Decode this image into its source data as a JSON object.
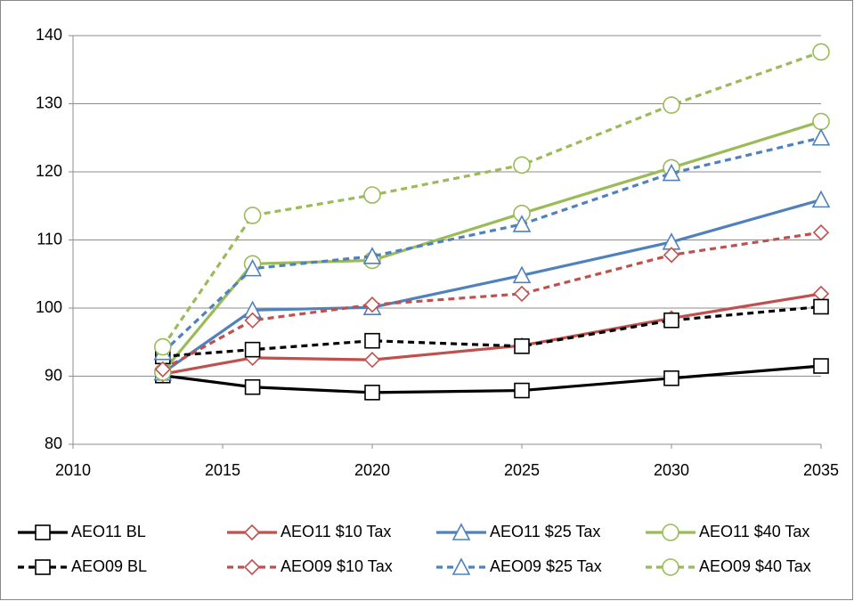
{
  "chart_data": {
    "type": "line",
    "x": [
      2013,
      2016,
      2020,
      2025,
      2030,
      2035
    ],
    "xlim": [
      2010,
      2035
    ],
    "xticks": [
      2010,
      2015,
      2020,
      2025,
      2030,
      2035
    ],
    "ylim": [
      80,
      140
    ],
    "yticks": [
      80,
      90,
      100,
      110,
      120,
      130,
      140
    ],
    "grid": true,
    "legend": "bottom",
    "series": [
      {
        "name": "AEO11 BL",
        "color": "#000000",
        "line_style": "solid",
        "marker": "square",
        "values": [
          90.1,
          88.4,
          87.6,
          87.9,
          89.7,
          91.5
        ]
      },
      {
        "name": "AEO11 $10 Tax",
        "color": "#c0504d",
        "line_style": "solid",
        "marker": "diamond",
        "values": [
          90.3,
          92.7,
          92.4,
          94.5,
          98.5,
          102.1
        ]
      },
      {
        "name": "AEO11 $25 Tax",
        "color": "#4f81bd",
        "line_style": "solid",
        "marker": "triangle",
        "values": [
          90.5,
          99.7,
          100.1,
          104.8,
          109.7,
          115.9
        ]
      },
      {
        "name": "AEO11 $40 Tax",
        "color": "#9bbb59",
        "line_style": "solid",
        "marker": "circle",
        "values": [
          90.6,
          106.5,
          107.0,
          113.9,
          120.6,
          127.4
        ]
      },
      {
        "name": "AEO09 BL",
        "color": "#000000",
        "line_style": "dashed",
        "marker": "square",
        "values": [
          92.9,
          93.9,
          95.2,
          94.4,
          98.2,
          100.2
        ]
      },
      {
        "name": "AEO09 $10 Tax",
        "color": "#c0504d",
        "line_style": "dashed",
        "marker": "diamond",
        "values": [
          91.0,
          98.2,
          100.5,
          102.1,
          107.8,
          111.1
        ]
      },
      {
        "name": "AEO09 $25 Tax",
        "color": "#4f81bd",
        "line_style": "dashed",
        "marker": "triangle",
        "values": [
          93.5,
          105.8,
          107.6,
          112.3,
          119.8,
          125.0
        ]
      },
      {
        "name": "AEO09 $40 Tax",
        "color": "#9bbb59",
        "line_style": "dashed",
        "marker": "circle",
        "values": [
          94.3,
          113.6,
          116.6,
          121.0,
          129.8,
          137.6
        ]
      }
    ]
  }
}
